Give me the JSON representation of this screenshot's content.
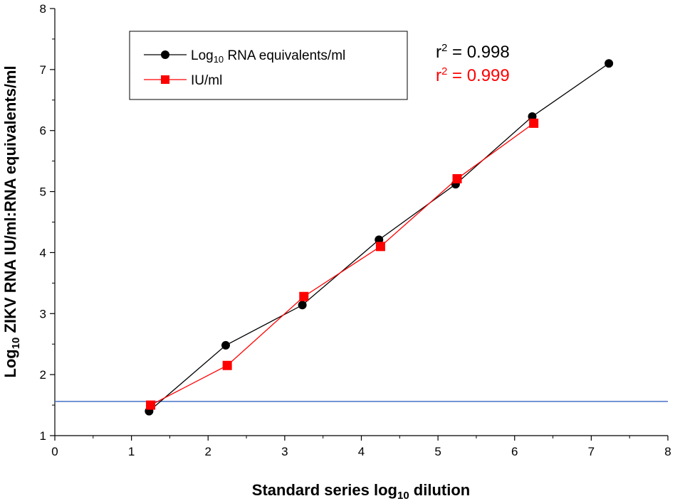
{
  "chart_data": {
    "type": "line",
    "xlabel": {
      "main": "Standard series log",
      "sub": "10",
      "tail": " dilution"
    },
    "ylabel": {
      "main": "Log",
      "sub": "10",
      "tail": " ZIKV RNA IU/ml:RNA equivalents/ml"
    },
    "xlim": [
      0,
      8
    ],
    "ylim": [
      1,
      8
    ],
    "xticks": [
      "0",
      "1",
      "2",
      "3",
      "4",
      "5",
      "6",
      "7",
      "8"
    ],
    "yticks": [
      "1",
      "2",
      "3",
      "4",
      "5",
      "6",
      "7",
      "8"
    ],
    "grid": false,
    "legend_position": "top-left",
    "series": [
      {
        "name_main": "Log",
        "name_sub": "10",
        "name_tail": " RNA equivalents/ml",
        "color": "#000000",
        "marker": "circle",
        "x": [
          1.23,
          2.23,
          3.23,
          4.23,
          5.23,
          6.23,
          7.23
        ],
        "y": [
          1.4,
          2.48,
          3.14,
          4.21,
          5.12,
          6.23,
          7.1
        ]
      },
      {
        "name": "IU/ml",
        "color": "#ff0000",
        "marker": "square",
        "x": [
          1.25,
          2.25,
          3.25,
          4.25,
          5.25,
          6.25
        ],
        "y": [
          1.5,
          2.15,
          3.28,
          4.1,
          5.21,
          6.12
        ]
      }
    ],
    "reference_line": {
      "y": 1.56,
      "color": "#4472c4"
    },
    "annotations": [
      {
        "base": "r",
        "sup": "2",
        "text": " = 0.998",
        "color": "#000000"
      },
      {
        "base": "r",
        "sup": "2",
        "text": " = 0.999",
        "color": "#ff0000"
      }
    ]
  }
}
